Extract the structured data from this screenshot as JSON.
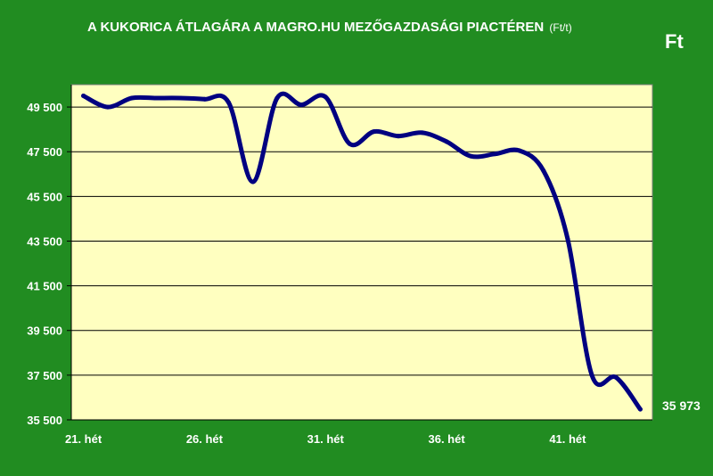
{
  "chart_data": {
    "type": "line",
    "title": "A KUKORICA ÁTLAGÁRA A MAGRO.HU MEZŐGAZDASÁGI PIACTÉREN",
    "title_unit": "(Ft/t)",
    "ylabel": "Ft",
    "ylim": [
      35500,
      50500
    ],
    "y_ticks": [
      "35 500",
      "37 500",
      "39 500",
      "41 500",
      "43 500",
      "45 500",
      "47 500",
      "49 500"
    ],
    "x_ticks": [
      "21. hét",
      "26. hét",
      "31. hét",
      "36. hét",
      "41. hét"
    ],
    "x_tick_weeks": [
      21,
      26,
      31,
      36,
      41
    ],
    "xlim": [
      20.5,
      44.5
    ],
    "grid": true,
    "last_value_label": "35 973",
    "series": [
      {
        "color": "#000080",
        "x": [
          21,
          22,
          23,
          24,
          25,
          26,
          27,
          28,
          29,
          30,
          31,
          32,
          33,
          34,
          35,
          36,
          37,
          38,
          39,
          40,
          41,
          42,
          43,
          44
        ],
        "values": [
          50000,
          49500,
          49900,
          49900,
          49900,
          49850,
          49700,
          46150,
          49900,
          49600,
          49950,
          47850,
          48400,
          48200,
          48350,
          47950,
          47300,
          47400,
          47550,
          46650,
          43600,
          37500,
          37400,
          35973
        ]
      }
    ]
  },
  "colors": {
    "background": "#218c21",
    "plot_area": "#ffffc0",
    "line": "#000080",
    "grid": "#000000"
  }
}
